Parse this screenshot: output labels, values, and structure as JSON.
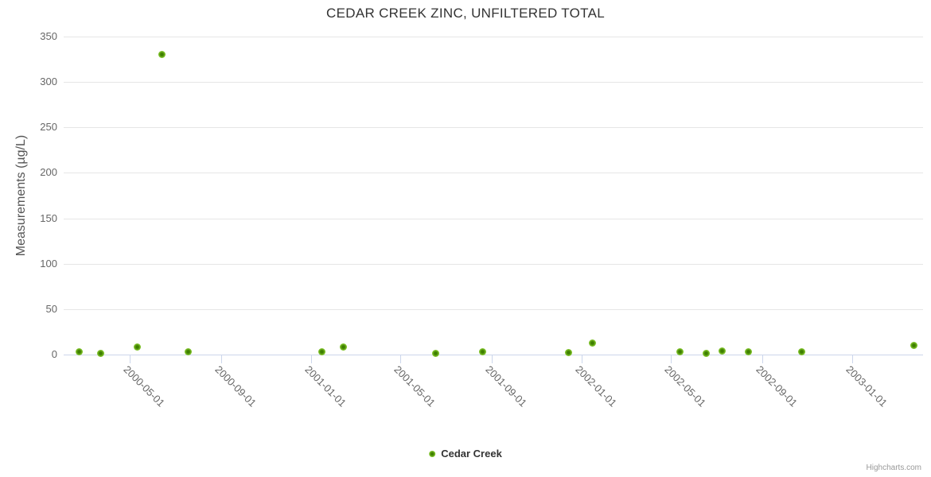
{
  "chart_data": {
    "type": "scatter",
    "title": "CEDAR CREEK ZINC, UNFILTERED TOTAL",
    "xlabel": "",
    "ylabel": "Measurements (µg/L)",
    "ylim": [
      0,
      350
    ],
    "y_ticks": [
      0,
      50,
      100,
      150,
      200,
      250,
      300,
      350
    ],
    "x_ticks": [
      "2000-05-01",
      "2000-09-01",
      "2001-01-01",
      "2001-05-01",
      "2001-09-01",
      "2002-01-01",
      "2002-05-01",
      "2002-09-01",
      "2003-01-01"
    ],
    "x_range": [
      "2000-02-02",
      "2003-04-06"
    ],
    "grid": true,
    "legend_position": "bottom-center",
    "series": [
      {
        "name": "Cedar Creek",
        "points": [
          {
            "date": "2000-02-23",
            "value": 3
          },
          {
            "date": "2000-03-23",
            "value": 1
          },
          {
            "date": "2000-05-11",
            "value": 8
          },
          {
            "date": "2000-06-14",
            "value": 330
          },
          {
            "date": "2000-07-19",
            "value": 3
          },
          {
            "date": "2001-01-15",
            "value": 3
          },
          {
            "date": "2001-02-13",
            "value": 8
          },
          {
            "date": "2001-06-18",
            "value": 1
          },
          {
            "date": "2001-08-20",
            "value": 3
          },
          {
            "date": "2001-12-14",
            "value": 2
          },
          {
            "date": "2002-01-15",
            "value": 13
          },
          {
            "date": "2002-05-13",
            "value": 3
          },
          {
            "date": "2002-06-18",
            "value": 1
          },
          {
            "date": "2002-07-09",
            "value": 4
          },
          {
            "date": "2002-08-13",
            "value": 3
          },
          {
            "date": "2002-10-24",
            "value": 3
          },
          {
            "date": "2003-03-25",
            "value": 10
          }
        ]
      }
    ],
    "credits": "Highcharts.com"
  },
  "colors": {
    "marker_inner": "#3e7f00",
    "marker_outer": "#7fc22a",
    "marker_edge": "#8fd044",
    "grid": "#e6e6e6",
    "axis_line": "#ccd6eb",
    "title_text": "#333333",
    "axis_text": "#666666",
    "credits_text": "#999999"
  }
}
